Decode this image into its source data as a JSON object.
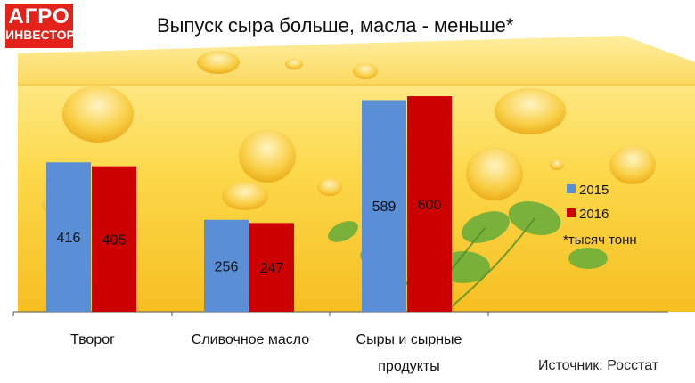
{
  "logo": {
    "line1": "АГРО",
    "line2": "ИНВЕСТОР"
  },
  "source": "Источник: Росстат",
  "chart_data": {
    "type": "bar",
    "title": "Выпуск сыра больше, масла - меньше*",
    "categories": [
      "Творог",
      "Сливочное масло",
      "Сыры и сырные продукты"
    ],
    "series": [
      {
        "name": "2015",
        "values": [
          416,
          256,
          589
        ],
        "color": "#5a8fd8"
      },
      {
        "name": "2016",
        "values": [
          405,
          247,
          600
        ],
        "color": "#cc0000"
      }
    ],
    "ylim": [
      0,
      610
    ],
    "unit_note": "*тысяч тонн",
    "legend_position": "right",
    "data_labels": true,
    "grid": false
  }
}
